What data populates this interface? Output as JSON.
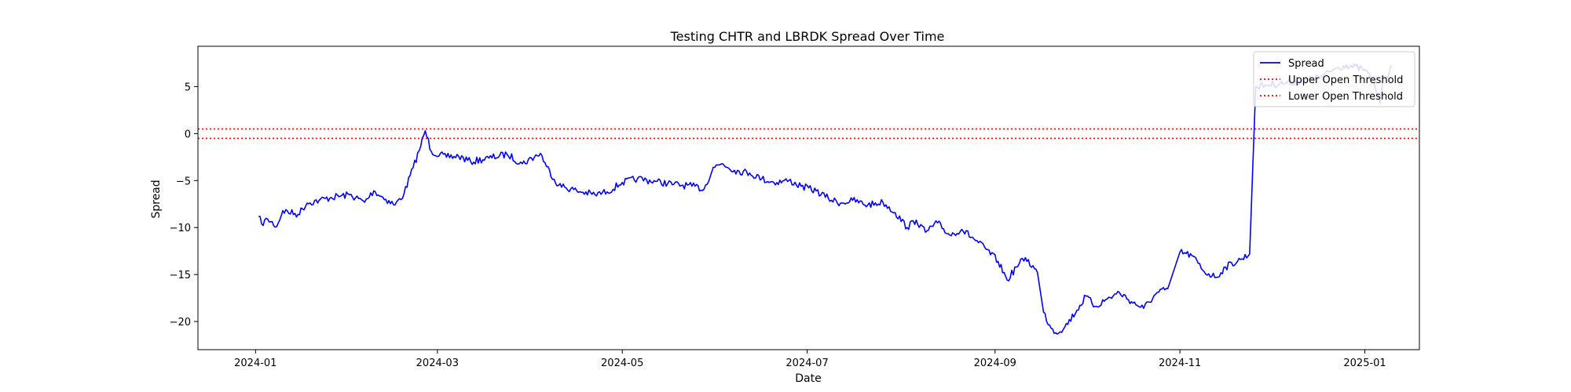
{
  "chart_data": {
    "type": "line",
    "title": "Testing CHTR and LBRDK Spread Over Time",
    "xlabel": "Date",
    "ylabel": "Spread",
    "xlim": [
      "2023-12-13",
      "2025-01-19"
    ],
    "ylim": [
      -23,
      9.3
    ],
    "x_ticks": [
      "2024-01-01",
      "2024-03-01",
      "2024-05-01",
      "2024-07-01",
      "2024-09-01",
      "2024-11-01",
      "2025-01-01"
    ],
    "x_tick_labels": [
      "2024-01",
      "2024-03",
      "2024-05",
      "2024-07",
      "2024-09",
      "2024-11",
      "2025-01"
    ],
    "y_ticks": [
      5,
      0,
      -5,
      -10,
      -15,
      -20
    ],
    "y_tick_labels": [
      "5",
      "0",
      "−5",
      "−10",
      "−15",
      "−20"
    ],
    "grid": false,
    "legend_position": "top-right",
    "series": [
      {
        "name": "Spread",
        "color": "#0000ff",
        "style": "solid",
        "points": [
          [
            "2024-01-02",
            -8.8
          ],
          [
            "2024-01-03",
            -9.6
          ],
          [
            "2024-01-05",
            -9.1
          ],
          [
            "2024-01-08",
            -9.9
          ],
          [
            "2024-01-10",
            -8.2
          ],
          [
            "2024-01-15",
            -8.6
          ],
          [
            "2024-01-18",
            -7.4
          ],
          [
            "2024-01-22",
            -7.1
          ],
          [
            "2024-01-26",
            -6.8
          ],
          [
            "2024-02-01",
            -6.5
          ],
          [
            "2024-02-06",
            -7.3
          ],
          [
            "2024-02-09",
            -6.1
          ],
          [
            "2024-02-13",
            -7.0
          ],
          [
            "2024-02-16",
            -7.6
          ],
          [
            "2024-02-19",
            -6.4
          ],
          [
            "2024-02-22",
            -3.6
          ],
          [
            "2024-02-24",
            -1.8
          ],
          [
            "2024-02-26",
            0.3
          ],
          [
            "2024-02-28",
            -1.9
          ],
          [
            "2024-03-04",
            -2.5
          ],
          [
            "2024-03-08",
            -2.4
          ],
          [
            "2024-03-12",
            -3.0
          ],
          [
            "2024-03-18",
            -2.6
          ],
          [
            "2024-03-24",
            -2.2
          ],
          [
            "2024-03-29",
            -3.2
          ],
          [
            "2024-04-04",
            -2.1
          ],
          [
            "2024-04-06",
            -3.5
          ],
          [
            "2024-04-10",
            -5.5
          ],
          [
            "2024-04-16",
            -6.1
          ],
          [
            "2024-04-22",
            -6.5
          ],
          [
            "2024-04-26",
            -6.2
          ],
          [
            "2024-05-01",
            -5.2
          ],
          [
            "2024-05-06",
            -4.8
          ],
          [
            "2024-05-12",
            -5.1
          ],
          [
            "2024-05-18",
            -5.4
          ],
          [
            "2024-05-24",
            -5.6
          ],
          [
            "2024-05-28",
            -5.9
          ],
          [
            "2024-05-31",
            -3.6
          ],
          [
            "2024-06-03",
            -3.2
          ],
          [
            "2024-06-07",
            -3.9
          ],
          [
            "2024-06-12",
            -4.2
          ],
          [
            "2024-06-16",
            -4.8
          ],
          [
            "2024-06-20",
            -5.2
          ],
          [
            "2024-06-25",
            -5.0
          ],
          [
            "2024-06-29",
            -5.6
          ],
          [
            "2024-07-04",
            -6.1
          ],
          [
            "2024-07-08",
            -6.9
          ],
          [
            "2024-07-12",
            -7.4
          ],
          [
            "2024-07-16",
            -7.1
          ],
          [
            "2024-07-21",
            -7.6
          ],
          [
            "2024-07-26",
            -7.3
          ],
          [
            "2024-07-30",
            -8.4
          ],
          [
            "2024-08-03",
            -10.0
          ],
          [
            "2024-08-06",
            -9.2
          ],
          [
            "2024-08-09",
            -10.5
          ],
          [
            "2024-08-13",
            -9.5
          ],
          [
            "2024-08-17",
            -10.8
          ],
          [
            "2024-08-21",
            -10.2
          ],
          [
            "2024-08-25",
            -11.2
          ],
          [
            "2024-08-29",
            -12.3
          ],
          [
            "2024-09-02",
            -13.6
          ],
          [
            "2024-09-05",
            -15.6
          ],
          [
            "2024-09-08",
            -14.2
          ],
          [
            "2024-09-11",
            -13.2
          ],
          [
            "2024-09-15",
            -14.8
          ],
          [
            "2024-09-17",
            -19.0
          ],
          [
            "2024-09-19",
            -20.4
          ],
          [
            "2024-09-21",
            -21.2
          ],
          [
            "2024-09-24",
            -20.6
          ],
          [
            "2024-09-28",
            -18.8
          ],
          [
            "2024-10-01",
            -17.3
          ],
          [
            "2024-10-04",
            -18.4
          ],
          [
            "2024-10-08",
            -17.6
          ],
          [
            "2024-10-12",
            -16.9
          ],
          [
            "2024-10-16",
            -17.9
          ],
          [
            "2024-10-20",
            -18.6
          ],
          [
            "2024-10-24",
            -17.1
          ],
          [
            "2024-10-28",
            -16.5
          ],
          [
            "2024-11-01",
            -12.6
          ],
          [
            "2024-11-05",
            -13.0
          ],
          [
            "2024-11-09",
            -14.7
          ],
          [
            "2024-11-13",
            -15.3
          ],
          [
            "2024-11-16",
            -14.2
          ],
          [
            "2024-11-21",
            -13.4
          ],
          [
            "2024-11-24",
            -12.8
          ],
          [
            "2024-11-26",
            5.0
          ],
          [
            "2024-11-30",
            5.2
          ],
          [
            "2024-12-06",
            5.4
          ],
          [
            "2024-12-12",
            5.6
          ],
          [
            "2024-12-18",
            6.1
          ],
          [
            "2024-12-22",
            6.9
          ],
          [
            "2024-12-26",
            7.3
          ],
          [
            "2025-01-01",
            6.8
          ],
          [
            "2025-01-04",
            5.4
          ],
          [
            "2025-01-06",
            3.2
          ],
          [
            "2025-01-07",
            6.1
          ],
          [
            "2025-01-09",
            6.4
          ],
          [
            "2025-01-10",
            7.2
          ]
        ]
      },
      {
        "name": "Upper Open Threshold",
        "color": "#ff0000",
        "style": "dotted",
        "value": 0.5
      },
      {
        "name": "Lower Open Threshold",
        "color": "#ff0000",
        "style": "dotted",
        "value": -0.5
      }
    ]
  }
}
